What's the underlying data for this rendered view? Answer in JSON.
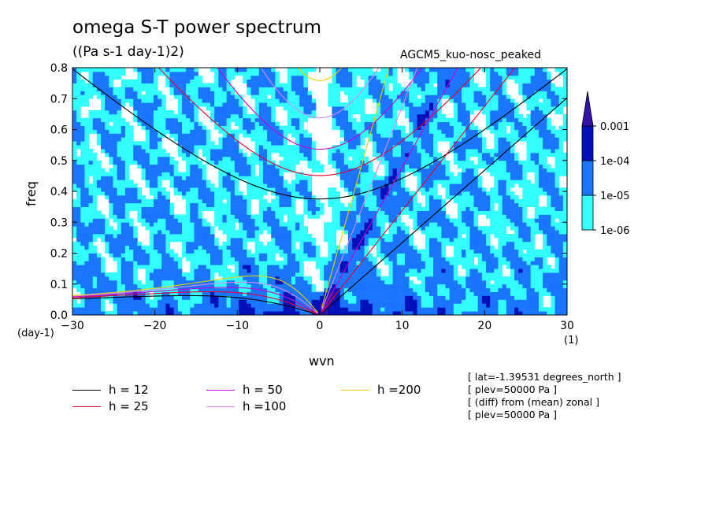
{
  "header": {
    "title": "omega S-T power spectrum",
    "units": "((Pa s-1 day-1)2)",
    "run_name": "AGCM5_kuo-nosc_peaked"
  },
  "axes": {
    "xlabel": "wvn",
    "ylabel": "freq",
    "x_unit": "(1)",
    "y_unit": "(day-1)"
  },
  "colorbar": {
    "levels": [
      "1e-06",
      "1e-05",
      "1e-04",
      "0.001"
    ],
    "colors": [
      "#33ffff",
      "#1a75ff",
      "#0011bb",
      "#3311aa"
    ]
  },
  "legend": [
    {
      "label": "h = 12",
      "color": "#000000"
    },
    {
      "label": "h = 25",
      "color": "#e8002a"
    },
    {
      "label": "h = 50",
      "color": "#cc00cc"
    },
    {
      "label": "h =100",
      "color": "#dd88ee"
    },
    {
      "label": "h =200",
      "color": "#e8d000"
    }
  ],
  "info_lines": [
    "[ lat=-1.39531 degrees_north ]",
    "[ plev=50000 Pa ]",
    "[ (diff) from (mean) zonal ]",
    "[ plev=50000 Pa ]"
  ],
  "chart_data": {
    "type": "heatmap",
    "title": "omega S-T power spectrum",
    "xlabel": "wvn",
    "ylabel": "freq",
    "xlim": [
      -30,
      30
    ],
    "ylim": [
      0,
      0.8
    ],
    "x_ticks": [
      "-30",
      "-20",
      "-10",
      "0",
      "10",
      "20",
      "30"
    ],
    "y_ticks": [
      "0.0",
      "0.1",
      "0.2",
      "0.3",
      "0.4",
      "0.5",
      "0.6",
      "0.7",
      "0.8"
    ],
    "contour_levels": [
      1e-06,
      1e-05,
      0.0001,
      0.001
    ],
    "dispersion_curves": [
      {
        "name": "h = 12",
        "equivalent_depth": 12
      },
      {
        "name": "h = 25",
        "equivalent_depth": 25
      },
      {
        "name": "h = 50",
        "equivalent_depth": 50
      },
      {
        "name": "h =100",
        "equivalent_depth": 100
      },
      {
        "name": "h =200",
        "equivalent_depth": 200
      }
    ],
    "grid": false
  }
}
